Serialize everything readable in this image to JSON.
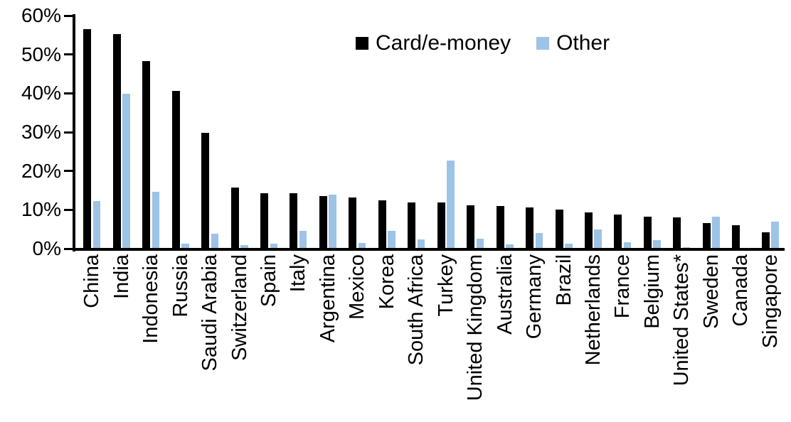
{
  "chart_data": {
    "type": "bar",
    "title": "",
    "xlabel": "",
    "ylabel": "",
    "ylim": [
      0,
      60
    ],
    "ytick_labels": [
      "0%",
      "10%",
      "20%",
      "30%",
      "40%",
      "50%",
      "60%"
    ],
    "ytick_values": [
      0,
      10,
      20,
      30,
      40,
      50,
      60
    ],
    "grid": false,
    "legend_position": "top-center",
    "categories": [
      "China",
      "India",
      "Indonesia",
      "Russia",
      "Saudi Arabia",
      "Switzerland",
      "Spain",
      "Italy",
      "Argentina",
      "Mexico",
      "Korea",
      "South Africa",
      "Turkey",
      "United Kingdom",
      "Australia",
      "Germany",
      "Brazil",
      "Netherlands",
      "France",
      "Belgium",
      "United States*",
      "Sweden",
      "Canada",
      "Singapore"
    ],
    "series": [
      {
        "name": "Card/e-money",
        "color": "#000000",
        "values": [
          56.5,
          55.2,
          48.3,
          40.7,
          29.9,
          15.7,
          14.3,
          14.2,
          13.5,
          13.1,
          12.4,
          11.9,
          11.8,
          11.2,
          10.9,
          10.7,
          10.1,
          9.3,
          8.8,
          8.3,
          8.0,
          6.6,
          6.1,
          4.2
        ]
      },
      {
        "name": "Other",
        "color": "#9DC3E6",
        "values": [
          12.3,
          39.8,
          14.7,
          1.2,
          3.9,
          1.0,
          1.2,
          4.6,
          13.9,
          1.4,
          4.6,
          2.4,
          22.7,
          2.5,
          1.1,
          4.0,
          1.3,
          5.0,
          1.6,
          2.2,
          0.4,
          8.2,
          0.0,
          6.9
        ]
      }
    ]
  },
  "axis": {
    "color": "#000000"
  }
}
